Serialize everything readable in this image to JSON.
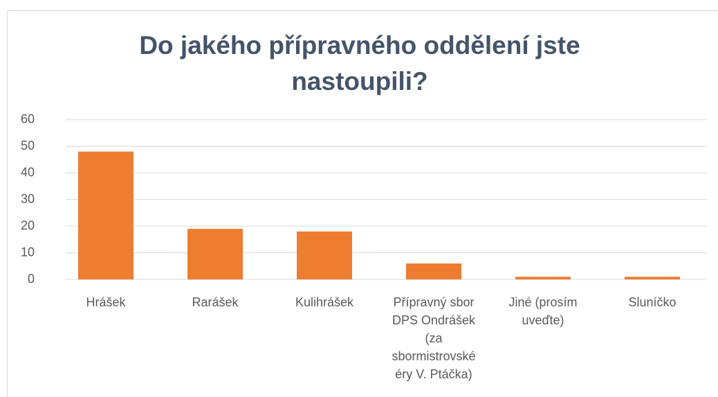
{
  "chart_data": {
    "type": "bar",
    "title": "Do jakého přípravného oddělení jste nastoupili?",
    "categories": [
      "Hrášek",
      "Rarášek",
      "Kulihrášek",
      "Přípravný sbor DPS Ondrášek (za sbormistrovské éry V. Ptáčka)",
      "Jiné (prosím uveďte)",
      "Sluníčko"
    ],
    "values": [
      48,
      19,
      18,
      6,
      1,
      1
    ],
    "color": "#ed7d31",
    "ylim": [
      0,
      60
    ],
    "yticks": [
      0,
      10,
      20,
      30,
      40,
      50,
      60
    ],
    "grid": true
  }
}
